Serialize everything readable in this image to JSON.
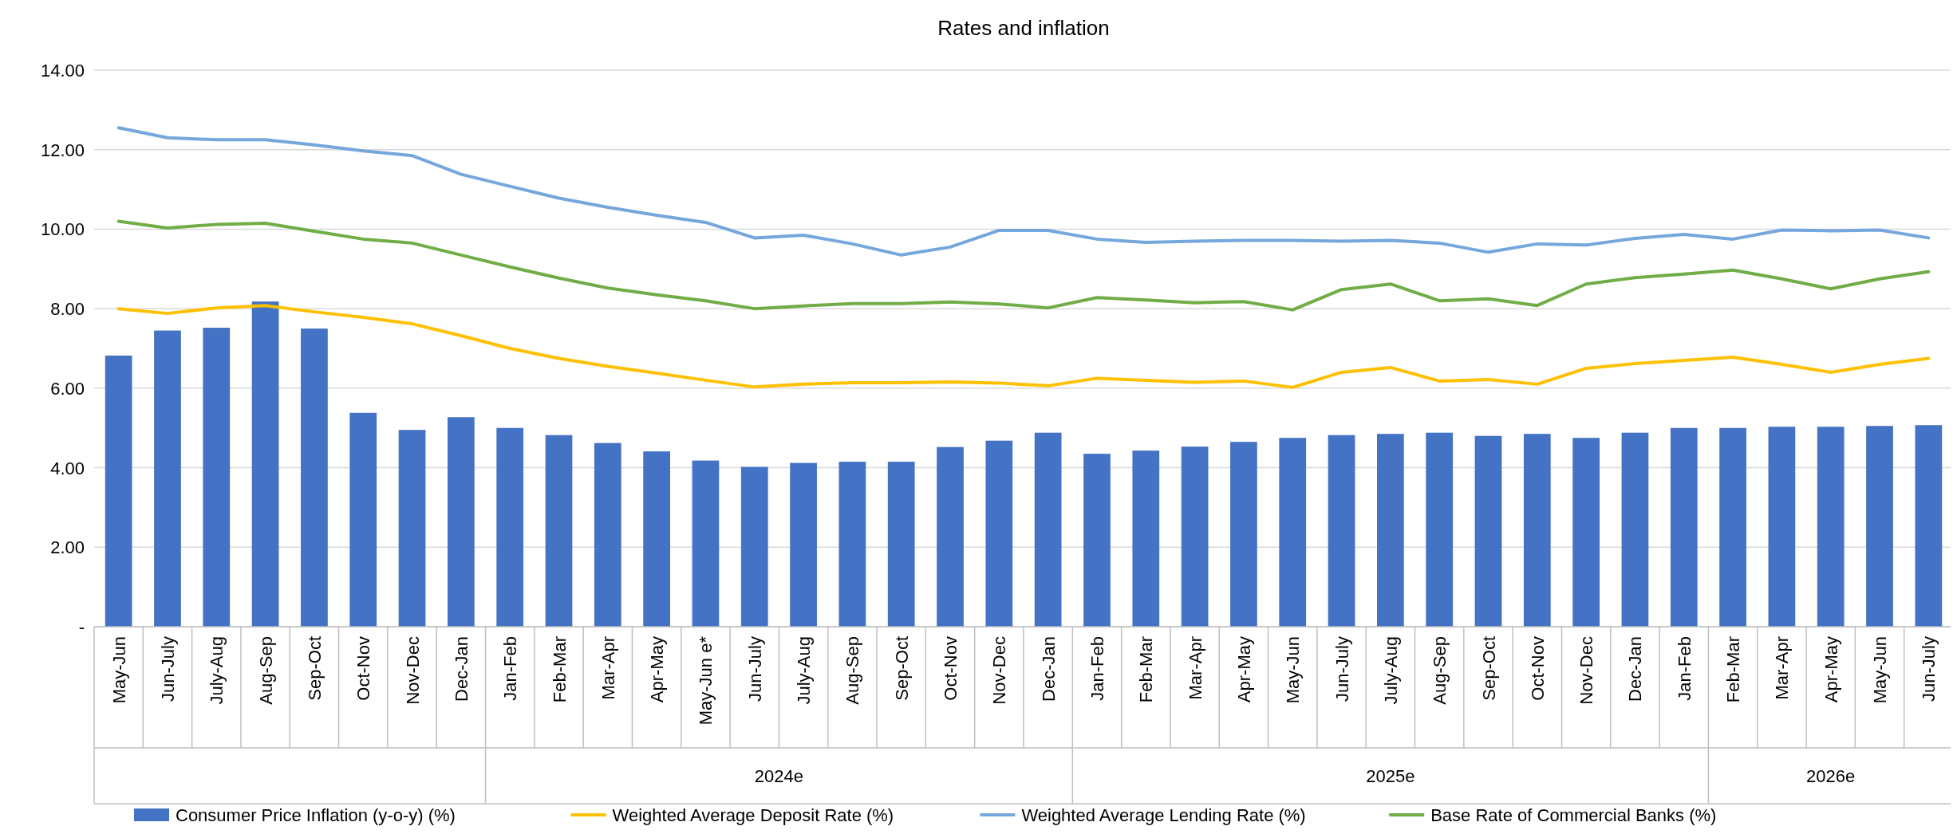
{
  "chart_data": {
    "type": "bar",
    "title": "Rates and inflation",
    "categories": [
      "May-Jun",
      "Jun-July",
      "July-Aug",
      "Aug-Sep",
      "Sep-Oct",
      "Oct-Nov",
      "Nov-Dec",
      "Dec-Jan",
      "Jan-Feb",
      "Feb-Mar",
      "Mar-Apr",
      "Apr-May",
      "May-Jun e*",
      "Jun-July",
      "July-Aug",
      "Aug-Sep",
      "Sep-Oct",
      "Oct-Nov",
      "Nov-Dec",
      "Dec-Jan",
      "Jan-Feb",
      "Feb-Mar",
      "Mar-Apr",
      "Apr-May",
      "May-Jun",
      "Jun-July",
      "July-Aug",
      "Aug-Sep",
      "Sep-Oct",
      "Oct-Nov",
      "Nov-Dec",
      "Dec-Jan",
      "Jan-Feb",
      "Feb-Mar",
      "Mar-Apr",
      "Apr-May",
      "May-Jun",
      "Jun-July"
    ],
    "series": [
      {
        "name": "Consumer Price Inflation (y-o-y) (%)",
        "color": "#4472c4",
        "values": [
          6.82,
          7.45,
          7.52,
          8.18,
          7.5,
          5.38,
          4.95,
          5.27,
          5.0,
          4.82,
          4.62,
          4.41,
          4.18,
          4.02,
          4.12,
          4.15,
          4.15,
          4.52,
          4.68,
          4.88,
          4.35,
          4.43,
          4.53,
          4.65,
          4.75,
          4.82,
          4.85,
          4.88,
          4.8,
          4.85,
          4.75,
          4.88,
          5.0,
          5.0,
          5.03,
          5.03,
          5.05,
          5.07
        ]
      },
      {
        "name": "Weighted Average Deposit Rate (%)",
        "type": "line",
        "color": "#ffc000",
        "values": [
          8.0,
          7.88,
          8.02,
          8.08,
          7.92,
          7.78,
          7.62,
          7.32,
          7.0,
          6.75,
          6.55,
          6.38,
          6.2,
          6.03,
          6.1,
          6.14,
          6.14,
          6.16,
          6.13,
          6.06,
          6.25,
          6.2,
          6.15,
          6.18,
          6.02,
          6.4,
          6.52,
          6.18,
          6.22,
          6.1,
          6.5,
          6.62,
          6.7,
          6.78,
          6.6,
          6.4,
          6.6,
          6.75
        ]
      },
      {
        "name": "Weighted Average Lending Rate (%)",
        "type": "line",
        "color": "#75a7dc",
        "values": [
          12.55,
          12.3,
          12.25,
          12.25,
          12.12,
          11.97,
          11.85,
          11.38,
          11.08,
          10.78,
          10.55,
          10.35,
          10.17,
          9.78,
          9.85,
          9.63,
          9.35,
          9.55,
          9.97,
          9.97,
          9.75,
          9.67,
          9.7,
          9.72,
          9.72,
          9.7,
          9.72,
          9.65,
          9.42,
          9.63,
          9.6,
          9.77,
          9.87,
          9.75,
          9.98,
          9.96,
          9.98,
          9.78
        ]
      },
      {
        "name": "Base Rate of Commercial Banks (%)",
        "type": "line",
        "color": "#70ad47",
        "values": [
          10.2,
          10.03,
          10.12,
          10.15,
          9.95,
          9.75,
          9.65,
          9.35,
          9.05,
          8.77,
          8.52,
          8.35,
          8.2,
          8.0,
          8.07,
          8.13,
          8.13,
          8.17,
          8.12,
          8.02,
          8.28,
          8.22,
          8.15,
          8.18,
          7.97,
          8.48,
          8.62,
          8.2,
          8.25,
          8.08,
          8.62,
          8.78,
          8.87,
          8.97,
          8.75,
          8.5,
          8.75,
          8.93
        ]
      }
    ],
    "ylim": [
      0,
      14
    ],
    "yticks": [
      {
        "value": 0,
        "label": "-"
      },
      {
        "value": 2,
        "label": "2.00"
      },
      {
        "value": 4,
        "label": "4.00"
      },
      {
        "value": 6,
        "label": "6.00"
      },
      {
        "value": 8,
        "label": "8.00"
      },
      {
        "value": 10,
        "label": "10.00"
      },
      {
        "value": 12,
        "label": "12.00"
      },
      {
        "value": 14,
        "label": "14.00"
      }
    ],
    "grid": "y",
    "legend": "bottom",
    "annotations": [
      "2024e",
      "2025e",
      "2026e"
    ]
  }
}
